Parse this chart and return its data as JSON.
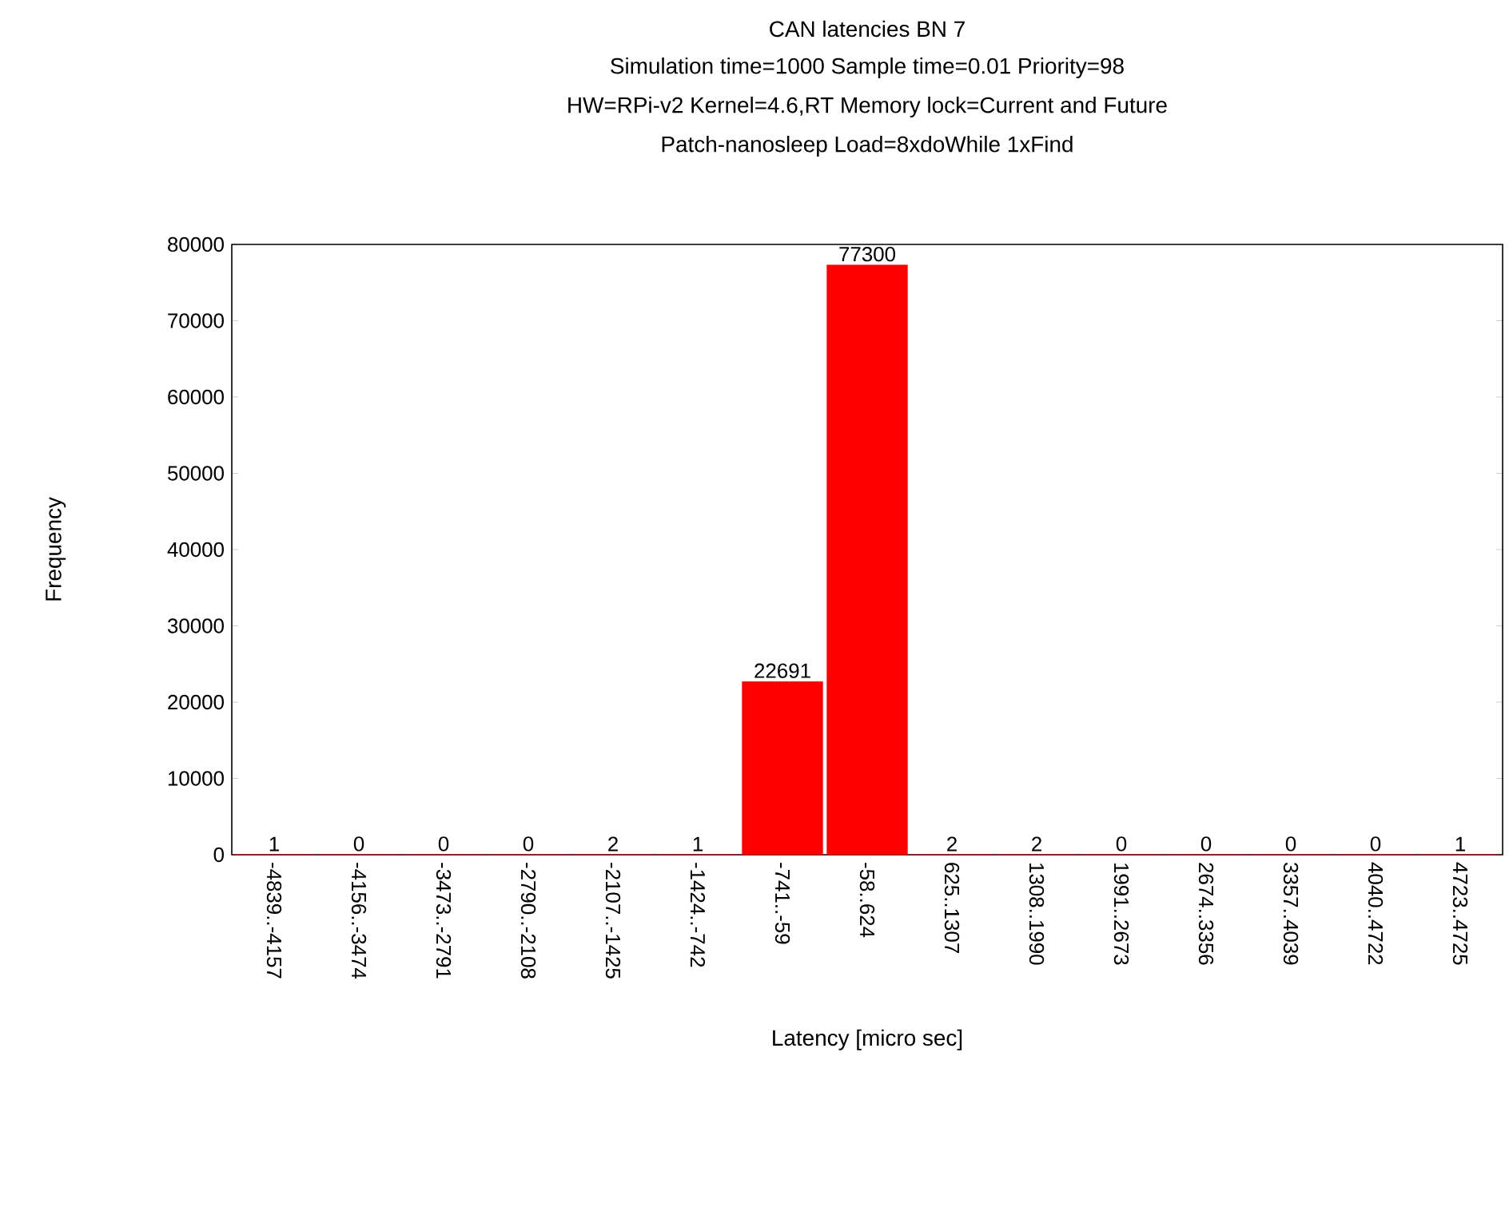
{
  "chart_data": {
    "type": "bar",
    "title": "CAN latencies BN 7",
    "subtitle": "Simulation time=1000 Sample time=0.01 Priority=98",
    "annotations": [
      "HW=RPi-v2 Kernel=4.6,RT Memory lock=Current and Future",
      "Patch-nanosleep Load=8xdoWhile 1xFind"
    ],
    "xlabel": "Latency [micro sec]",
    "ylabel": "Frequency",
    "categories": [
      "-4839..-4157",
      "-4156..-3474",
      "-3473..-2791",
      "-2790..-2108",
      "-2107..-1425",
      "-1424..-742",
      "-741..-59",
      "-58..624",
      "625..1307",
      "1308..1990",
      "1991..2673",
      "2674..3356",
      "3357..4039",
      "4040..4722",
      "4723..4725"
    ],
    "values": [
      1,
      0,
      0,
      0,
      2,
      1,
      22691,
      77300,
      2,
      2,
      0,
      0,
      0,
      0,
      1
    ],
    "color": "#ff0000",
    "ylim": [
      0,
      80000
    ],
    "yticks": [
      0,
      10000,
      20000,
      30000,
      40000,
      50000,
      60000,
      70000,
      80000
    ],
    "data_labels": true,
    "grid": false
  }
}
